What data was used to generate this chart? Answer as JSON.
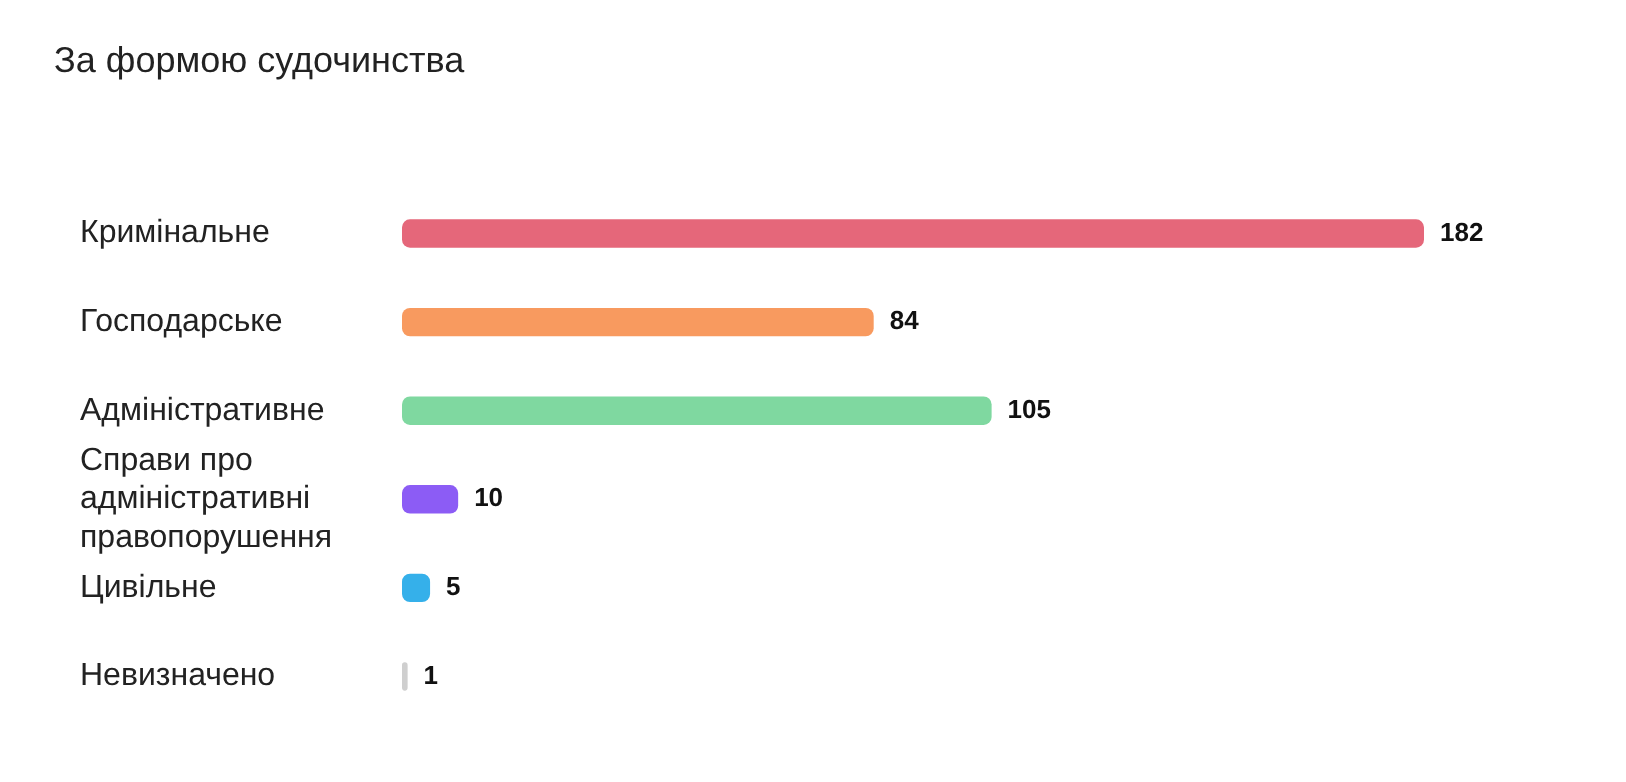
{
  "chart_data": {
    "type": "bar",
    "orientation": "horizontal",
    "title": "За формою судочинства",
    "categories": [
      "Кримінальне",
      "Господарське",
      "Адміністративне",
      "Справи про адміністративні правопорушення",
      "Цивільне",
      "Невизначено"
    ],
    "values": [
      182,
      84,
      105,
      10,
      5,
      1
    ],
    "colors": [
      "#e5677a",
      "#f89a5f",
      "#7fd8a0",
      "#8c5cf5",
      "#35b0ea",
      "#cfcfcf"
    ],
    "relative": false,
    "data_labels": true,
    "grid": false,
    "legend": false
  }
}
